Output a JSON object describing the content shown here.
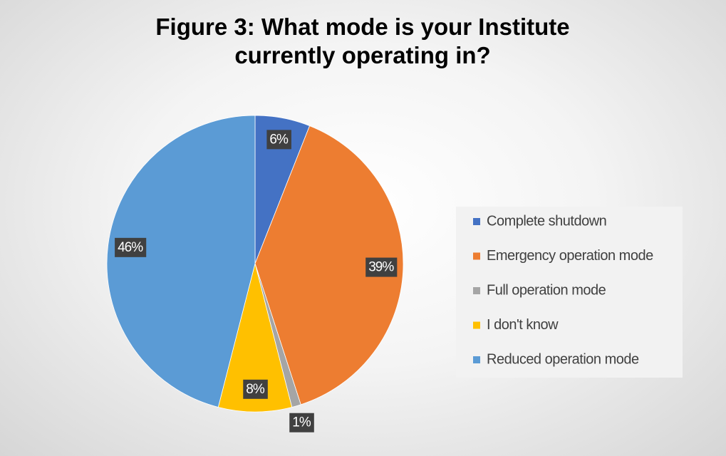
{
  "chart_data": {
    "type": "pie",
    "title": "Figure 3: What mode is your Institute currently operating in?",
    "categories": [
      "Complete shutdown",
      "Emergency operation mode",
      "Full operation mode",
      "I don't know",
      "Reduced operation mode"
    ],
    "values": [
      6,
      39,
      1,
      8,
      46
    ],
    "value_labels": [
      "6%",
      "39%",
      "1%",
      "8%",
      "46%"
    ],
    "colors": [
      "#4472c4",
      "#ed7d31",
      "#a5a5a5",
      "#ffc000",
      "#5b9bd5"
    ],
    "legend": "right"
  }
}
